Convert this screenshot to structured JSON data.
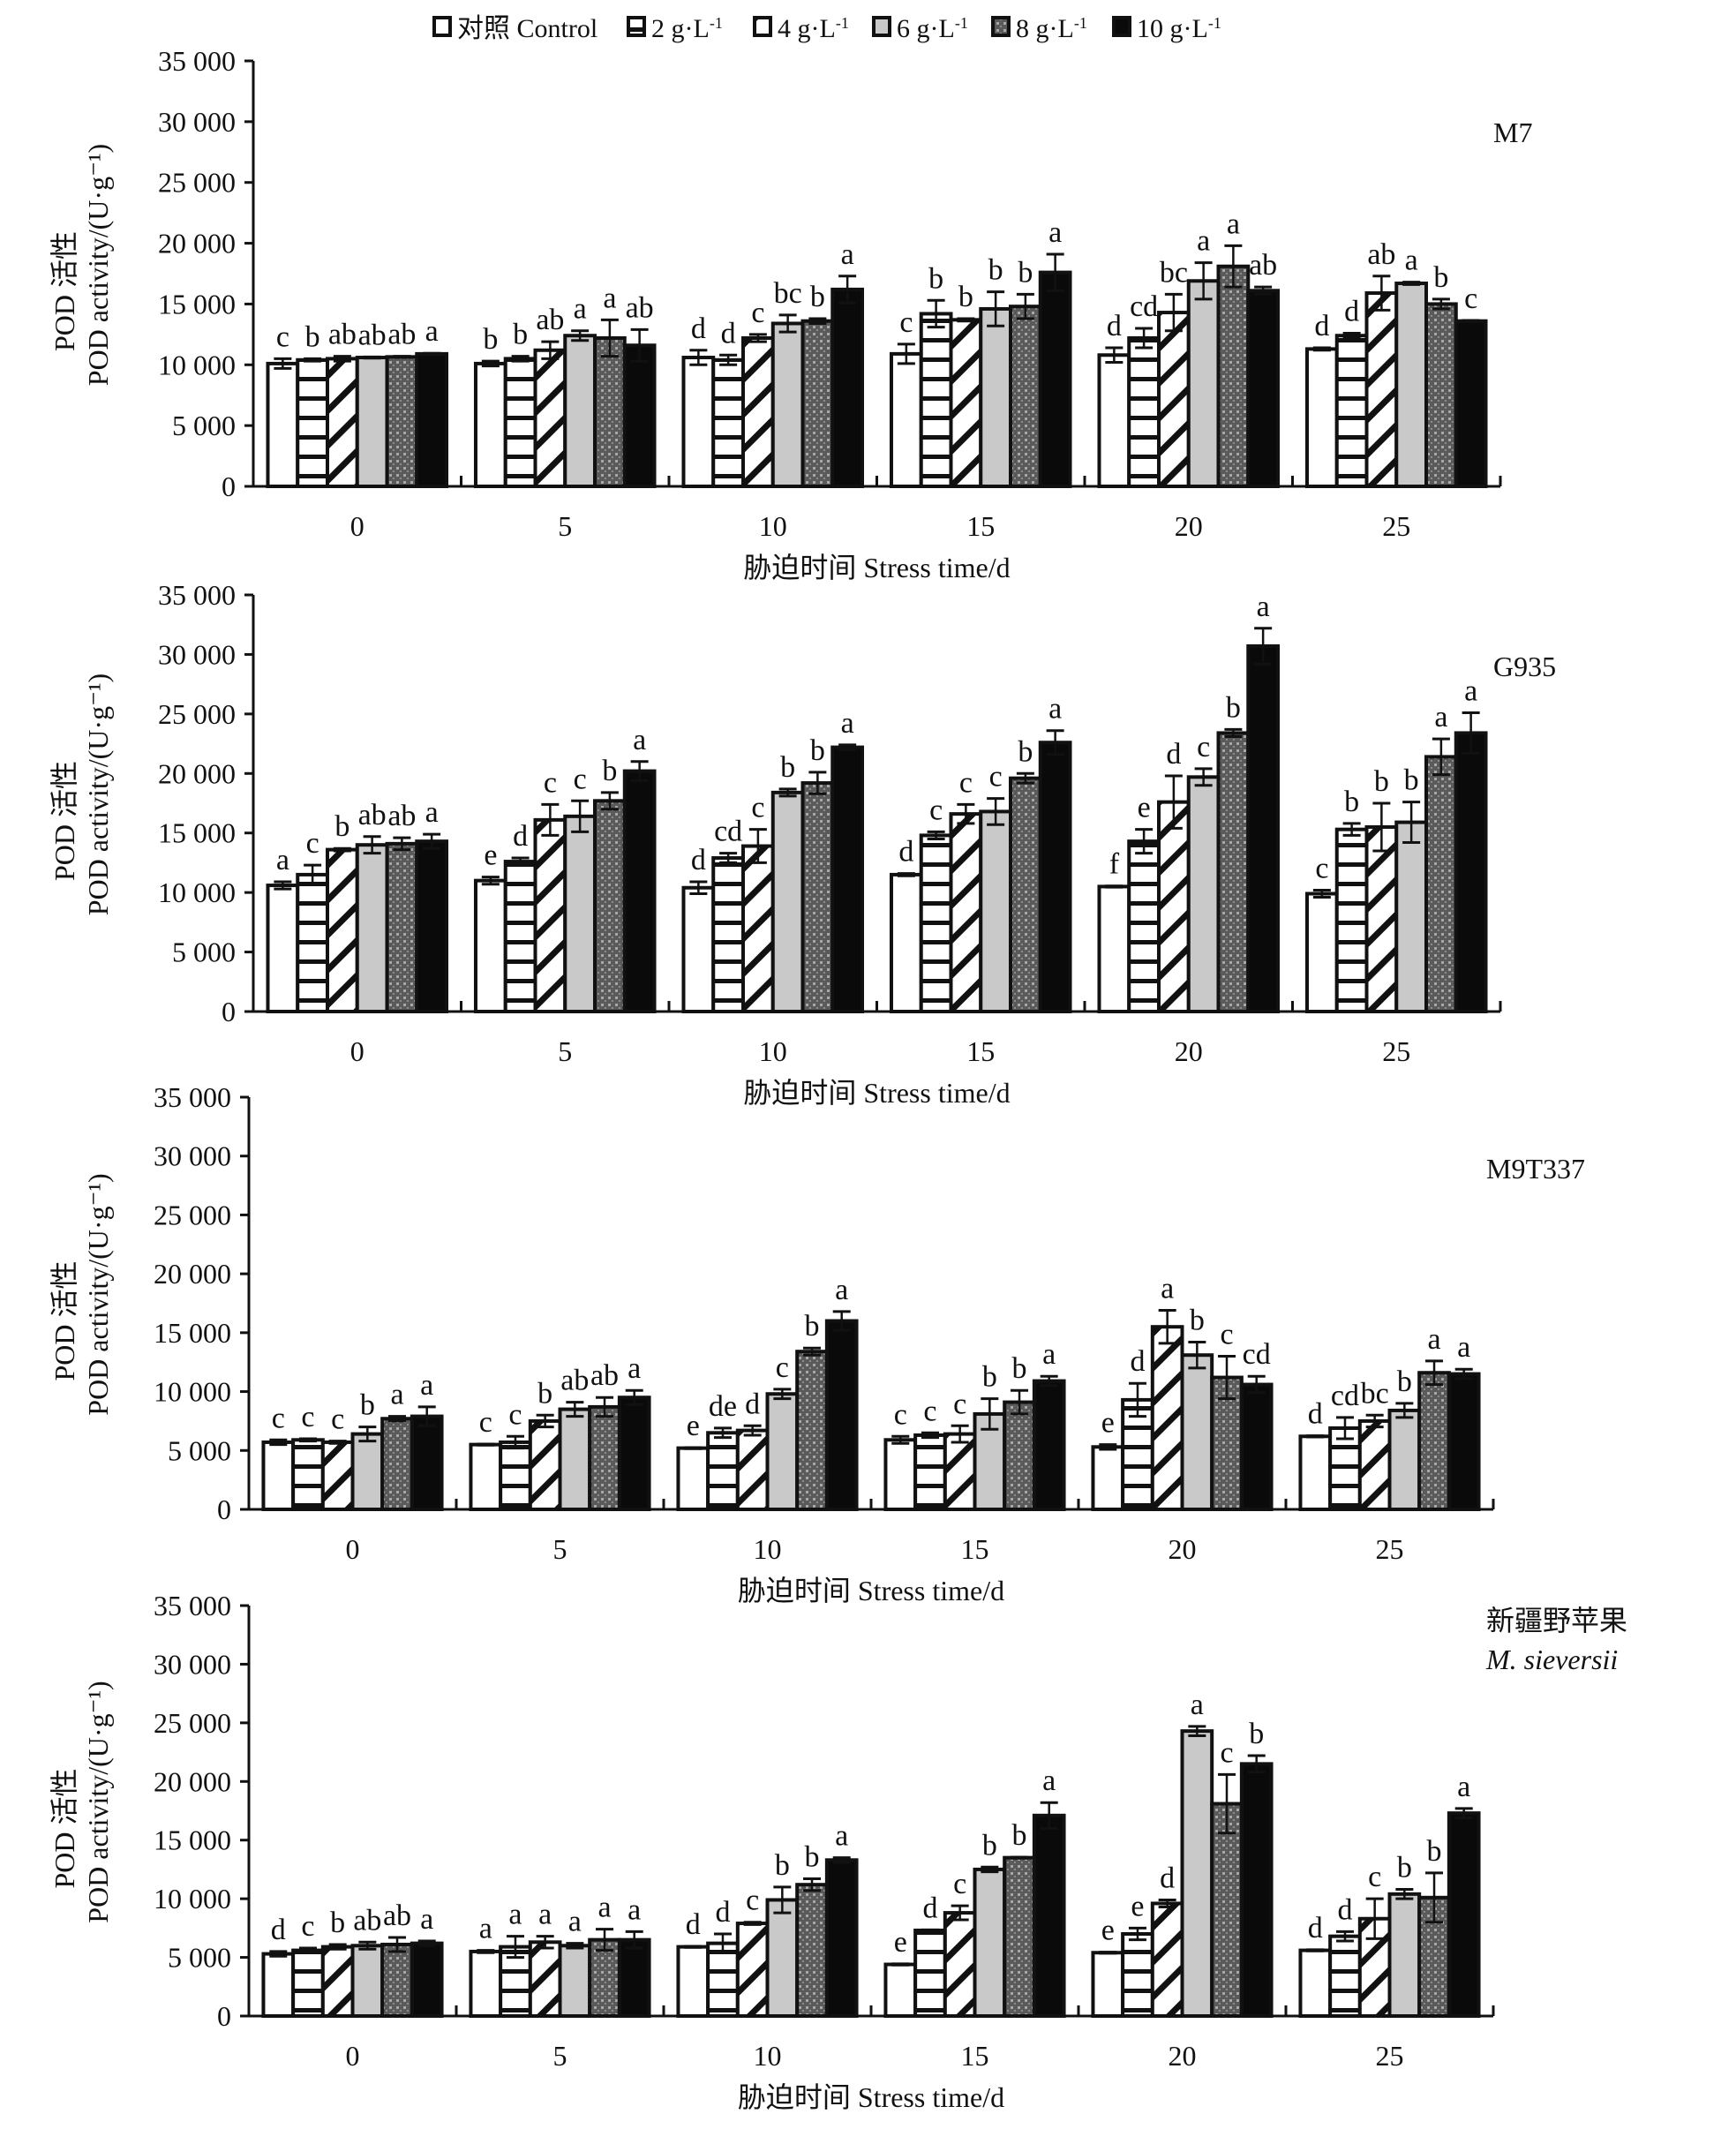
{
  "chart_data": [
    {
      "type": "bar",
      "panel": "M7",
      "title": "M7",
      "title_italic": "",
      "categories": [
        "0",
        "5",
        "10",
        "15",
        "20",
        "25"
      ],
      "xlabel": "胁迫时间 Stress time/d",
      "ylabel_cn": "POD 活性",
      "ylabel_en": "POD activity/(U·g⁻¹)",
      "ylim": [
        0,
        35000
      ],
      "yticks": [
        0,
        5000,
        10000,
        15000,
        20000,
        25000,
        30000,
        35000
      ],
      "ytick_labels": [
        "0",
        "5 000",
        "10 000",
        "15 000",
        "20 000",
        "25 000",
        "30 000",
        "35 000"
      ],
      "series": [
        {
          "name": "对照 Control",
          "values": [
            10100,
            10100,
            10600,
            10900,
            10800,
            11300
          ],
          "errors": [
            400,
            200,
            600,
            800,
            600,
            100
          ],
          "letters": [
            "c",
            "b",
            "d",
            "c",
            "d",
            "d"
          ]
        },
        {
          "name": "2 g·L⁻¹",
          "values": [
            10400,
            10500,
            10400,
            14200,
            12200,
            12400
          ],
          "errors": [
            100,
            200,
            400,
            1100,
            800,
            200
          ],
          "letters": [
            "b",
            "b",
            "d",
            "b",
            "cd",
            "d"
          ]
        },
        {
          "name": "4 g·L⁻¹",
          "values": [
            10500,
            11200,
            12200,
            13700,
            14300,
            15900
          ],
          "errors": [
            200,
            700,
            300,
            100,
            1500,
            1400
          ],
          "letters": [
            "ab",
            "ab",
            "c",
            "b",
            "bc",
            "ab"
          ]
        },
        {
          "name": "6 g·L⁻¹",
          "values": [
            10600,
            12400,
            13400,
            14600,
            16900,
            16700
          ],
          "errors": [
            50,
            400,
            700,
            1400,
            1500,
            100
          ],
          "letters": [
            "ab",
            "a",
            "bc",
            "b",
            "a",
            "a"
          ]
        },
        {
          "name": "8 g·L⁻¹",
          "values": [
            10650,
            12200,
            13600,
            14800,
            18100,
            15000
          ],
          "errors": [
            50,
            1500,
            200,
            1000,
            1700,
            400
          ],
          "letters": [
            "ab",
            "a",
            "b",
            "b",
            "a",
            "b"
          ]
        },
        {
          "name": "10 g·L⁻¹",
          "values": [
            10900,
            11600,
            16200,
            17600,
            16100,
            13600
          ],
          "errors": [
            50,
            1300,
            1100,
            1500,
            300,
            50
          ],
          "letters": [
            "a",
            "ab",
            "a",
            "a",
            "ab",
            "c"
          ]
        }
      ]
    },
    {
      "type": "bar",
      "panel": "G935",
      "title": "G935",
      "title_italic": "",
      "categories": [
        "0",
        "5",
        "10",
        "15",
        "20",
        "25"
      ],
      "xlabel": "胁迫时间 Stress time/d",
      "ylabel_cn": "POD 活性",
      "ylabel_en": "POD activity/(U·g⁻¹)",
      "ylim": [
        0,
        35000
      ],
      "yticks": [
        0,
        5000,
        10000,
        15000,
        20000,
        25000,
        30000,
        35000
      ],
      "ytick_labels": [
        "0",
        "5 000",
        "10 000",
        "15 000",
        "20 000",
        "25 000",
        "30 000",
        "35 000"
      ],
      "series": [
        {
          "name": "对照 Control",
          "values": [
            10600,
            11000,
            10400,
            11500,
            10500,
            9900
          ],
          "errors": [
            300,
            300,
            500,
            100,
            50,
            300
          ],
          "letters": [
            "a",
            "e",
            "d",
            "d",
            "f",
            "c"
          ]
        },
        {
          "name": "2 g·L⁻¹",
          "values": [
            11500,
            12600,
            12900,
            14800,
            14300,
            15300
          ],
          "errors": [
            800,
            300,
            400,
            300,
            1000,
            500
          ],
          "letters": [
            "c",
            "d",
            "cd",
            "c",
            "e",
            "b"
          ]
        },
        {
          "name": "4 g·L⁻¹",
          "values": [
            13600,
            16100,
            13900,
            16600,
            17600,
            15500
          ],
          "errors": [
            100,
            1300,
            1400,
            800,
            2200,
            2000
          ],
          "letters": [
            "b",
            "c",
            "c",
            "c",
            "d",
            "b"
          ]
        },
        {
          "name": "6 g·L⁻¹",
          "values": [
            14000,
            16400,
            18400,
            16800,
            19700,
            15900
          ],
          "errors": [
            700,
            1300,
            300,
            1100,
            700,
            1700
          ],
          "letters": [
            "ab",
            "c",
            "b",
            "c",
            "c",
            "b"
          ]
        },
        {
          "name": "8 g·L⁻¹",
          "values": [
            14100,
            17700,
            19200,
            19600,
            23400,
            21400
          ],
          "errors": [
            500,
            700,
            900,
            400,
            300,
            1500
          ],
          "letters": [
            "ab",
            "b",
            "b",
            "b",
            "b",
            "a"
          ]
        },
        {
          "name": "10 g·L⁻¹",
          "values": [
            14300,
            20200,
            22200,
            22600,
            30700,
            23400
          ],
          "errors": [
            600,
            800,
            200,
            1000,
            1500,
            1700
          ],
          "letters": [
            "a",
            "a",
            "a",
            "a",
            "a",
            "a"
          ]
        }
      ]
    },
    {
      "type": "bar",
      "panel": "M9T337",
      "title": "M9T337",
      "title_italic": "",
      "categories": [
        "0",
        "5",
        "10",
        "15",
        "20",
        "25"
      ],
      "xlabel": "胁迫时间 Stress time/d",
      "ylabel_cn": "POD 活性",
      "ylabel_en": "POD activity/(U·g⁻¹)",
      "ylim": [
        0,
        35000
      ],
      "yticks": [
        0,
        5000,
        10000,
        15000,
        20000,
        25000,
        30000,
        35000
      ],
      "ytick_labels": [
        "0",
        "5 000",
        "10 000",
        "15 000",
        "20 000",
        "25 000",
        "30 000",
        "35 000"
      ],
      "series": [
        {
          "name": "对照 Control",
          "values": [
            5700,
            5500,
            5200,
            5900,
            5300,
            6200
          ],
          "errors": [
            200,
            50,
            50,
            300,
            200,
            50
          ],
          "letters": [
            "c",
            "c",
            "e",
            "c",
            "e",
            "d"
          ]
        },
        {
          "name": "2 g·L⁻¹",
          "values": [
            5900,
            5700,
            6500,
            6300,
            9300,
            6900
          ],
          "errors": [
            100,
            500,
            400,
            200,
            1400,
            900
          ],
          "letters": [
            "c",
            "c",
            "de",
            "c",
            "d",
            "cd"
          ]
        },
        {
          "name": "4 g·L⁻¹",
          "values": [
            5700,
            7500,
            6700,
            6400,
            15500,
            7500
          ],
          "errors": [
            100,
            500,
            400,
            700,
            1400,
            500
          ],
          "letters": [
            "c",
            "b",
            "d",
            "c",
            "a",
            "bc"
          ]
        },
        {
          "name": "6 g·L⁻¹",
          "values": [
            6400,
            8500,
            9800,
            8100,
            13100,
            8400
          ],
          "errors": [
            600,
            600,
            400,
            1300,
            1100,
            600
          ],
          "letters": [
            "b",
            "ab",
            "c",
            "b",
            "b",
            "b"
          ]
        },
        {
          "name": "8 g·L⁻¹",
          "values": [
            7700,
            8700,
            13400,
            9100,
            11200,
            11600
          ],
          "errors": [
            200,
            800,
            300,
            1000,
            1800,
            1000
          ],
          "letters": [
            "a",
            "ab",
            "b",
            "b",
            "c",
            "a"
          ]
        },
        {
          "name": "10 g·L⁻¹",
          "values": [
            7900,
            9500,
            16000,
            10900,
            10600,
            11500
          ],
          "errors": [
            800,
            600,
            800,
            400,
            700,
            400
          ],
          "letters": [
            "a",
            "a",
            "a",
            "a",
            "cd",
            "a"
          ]
        }
      ]
    },
    {
      "type": "bar",
      "panel": "M. sieversii",
      "title": "新疆野苹果",
      "title_italic": "M. sieversii",
      "categories": [
        "0",
        "5",
        "10",
        "15",
        "20",
        "25"
      ],
      "xlabel": "胁迫时间 Stress time/d",
      "ylabel_cn": "POD 活性",
      "ylabel_en": "POD activity/(U·g⁻¹)",
      "ylim": [
        0,
        35000
      ],
      "yticks": [
        0,
        5000,
        10000,
        15000,
        20000,
        25000,
        30000,
        35000
      ],
      "ytick_labels": [
        "0",
        "5 000",
        "10 000",
        "15 000",
        "20 000",
        "25 000",
        "30 000",
        "35 000"
      ],
      "series": [
        {
          "name": "对照 Control",
          "values": [
            5300,
            5500,
            5900,
            4400,
            5400,
            5600
          ],
          "errors": [
            200,
            100,
            50,
            50,
            50,
            50
          ],
          "letters": [
            "d",
            "a",
            "d",
            "e",
            "e",
            "d"
          ]
        },
        {
          "name": "2 g·L⁻¹",
          "values": [
            5600,
            5900,
            6200,
            7300,
            7000,
            6800
          ],
          "errors": [
            200,
            900,
            800,
            50,
            500,
            400
          ],
          "letters": [
            "c",
            "a",
            "d",
            "d",
            "e",
            "d"
          ]
        },
        {
          "name": "4 g·L⁻¹",
          "values": [
            5900,
            6300,
            7900,
            8800,
            9600,
            8300
          ],
          "errors": [
            200,
            500,
            100,
            600,
            300,
            1700
          ],
          "letters": [
            "b",
            "a",
            "c",
            "c",
            "d",
            "c"
          ]
        },
        {
          "name": "6 g·L⁻¹",
          "values": [
            6000,
            6000,
            9900,
            12500,
            24300,
            10400
          ],
          "errors": [
            300,
            200,
            1100,
            200,
            400,
            400
          ],
          "letters": [
            "ab",
            "a",
            "b",
            "b",
            "a",
            "b"
          ]
        },
        {
          "name": "8 g·L⁻¹",
          "values": [
            6100,
            6500,
            11200,
            13500,
            18100,
            10100
          ],
          "errors": [
            600,
            900,
            500,
            50,
            2500,
            2100
          ],
          "letters": [
            "ab",
            "a",
            "b",
            "b",
            "c",
            "b"
          ]
        },
        {
          "name": "10 g·L⁻¹",
          "values": [
            6200,
            6500,
            13300,
            17100,
            21500,
            17300
          ],
          "errors": [
            200,
            700,
            200,
            1100,
            700,
            400
          ],
          "letters": [
            "a",
            "a",
            "a",
            "a",
            "b",
            "a"
          ]
        }
      ]
    }
  ],
  "legend": {
    "items": [
      {
        "label": "对照 Control",
        "pattern": "white"
      },
      {
        "label": "2 g·L",
        "sup": "-1",
        "pattern": "horizontal-stripes"
      },
      {
        "label": "4 g·L",
        "sup": "-1",
        "pattern": "diagonal-stripes"
      },
      {
        "label": "6 g·L",
        "sup": "-1",
        "pattern": "light-gray"
      },
      {
        "label": "8 g·L",
        "sup": "-1",
        "pattern": "dark-dotted"
      },
      {
        "label": "10 g·L",
        "sup": "-1",
        "pattern": "black"
      }
    ],
    "placement": "top-center"
  },
  "colors": {
    "axis": "#111111",
    "light_gray": "#c9c9c9",
    "dark_dotted": "#6f6f6f",
    "black": "#0a0a0a"
  }
}
